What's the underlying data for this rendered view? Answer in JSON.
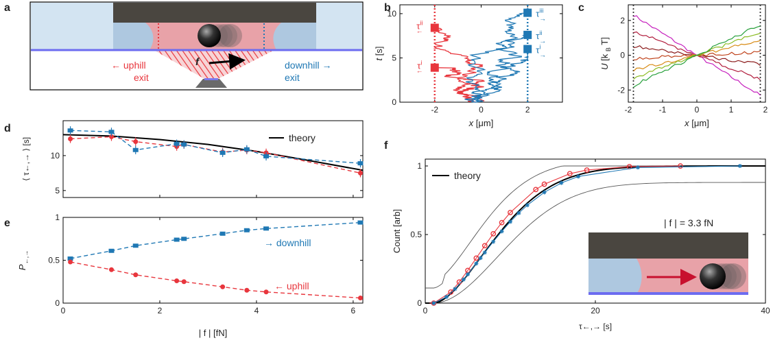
{
  "panels": {
    "a": "a",
    "b": "b",
    "c": "c",
    "d": "d",
    "e": "e",
    "f": "f"
  },
  "colors": {
    "red": "#e8363d",
    "blue": "#1f78b4",
    "wall": "#4a4640",
    "pink": "#e8a2a8",
    "lightblue": "#aec8e0"
  },
  "panel_a": {
    "force_label": "f",
    "uphill_line1": "← uphill",
    "uphill_line2": "exit",
    "downhill_line1": "downhill →",
    "downhill_line2": "exit"
  },
  "chart_data": [
    {
      "id": "b",
      "type": "line",
      "xlabel_var": "x",
      "xlabel_unit": "[μm]",
      "ylabel_var": "t",
      "ylabel_unit": "[s]",
      "xlim": [
        -3.5,
        3.5
      ],
      "ylim": [
        0,
        11
      ],
      "xticks": [
        "-2",
        "0",
        "2"
      ],
      "yticks": [
        "0",
        "5",
        "10"
      ],
      "exit_lines_x": [
        -2,
        2
      ],
      "annotations": [
        {
          "text": "τ",
          "sup": "ii",
          "arrow": "←",
          "x": -2,
          "y": 8.4,
          "color": "red"
        },
        {
          "text": "τ",
          "sup": "i",
          "arrow": "←",
          "x": -2,
          "y": 3.9,
          "color": "red"
        },
        {
          "text": "τ",
          "sup": "iii",
          "arrow": "→",
          "x": 2,
          "y": 10.1,
          "color": "blue"
        },
        {
          "text": "τ",
          "sup": "ii",
          "arrow": "→",
          "x": 2,
          "y": 7.6,
          "color": "blue"
        },
        {
          "text": "τ",
          "sup": "i",
          "arrow": "→",
          "x": 2,
          "y": 6.0,
          "color": "blue"
        }
      ]
    },
    {
      "id": "c",
      "type": "line",
      "xlabel_var": "x",
      "xlabel_unit": "[μm]",
      "ylabel_var": "U",
      "ylabel_unit": "[k",
      "ylabel_sub": "B",
      "ylabel_end": "T]",
      "xlim": [
        -2,
        2
      ],
      "ylim": [
        -2.7,
        2.9
      ],
      "xticks": [
        "-2",
        "-1",
        "0",
        "1",
        "2"
      ],
      "yticks": [
        "-2",
        "0",
        "2"
      ],
      "series_slopes": [
        {
          "slope": -1.25,
          "color": "#c51fbd"
        },
        {
          "slope": -0.75,
          "color": "#b01a3a"
        },
        {
          "slope": -0.28,
          "color": "#8b1a1a"
        },
        {
          "slope": 0.1,
          "color": "#c0431c"
        },
        {
          "slope": 0.45,
          "color": "#d88b15"
        },
        {
          "slope": 0.7,
          "color": "#8bbb22"
        },
        {
          "slope": 0.95,
          "color": "#28a03c"
        }
      ]
    },
    {
      "id": "d",
      "type": "line",
      "ylabel": "⟨ τ←,→ ⟩ [s]",
      "xlim": [
        0,
        6.2
      ],
      "ylim": [
        4,
        15
      ],
      "yticks": [
        "5",
        "10"
      ],
      "legend": "theory",
      "x": [
        0.15,
        1.0,
        1.5,
        2.35,
        2.5,
        3.3,
        3.8,
        4.2,
        6.15
      ],
      "series": [
        {
          "name": "uphill",
          "color": "red",
          "values": [
            12.4,
            12.7,
            12.0,
            11.3,
            11.6,
            10.5,
            10.8,
            10.4,
            7.5
          ]
        },
        {
          "name": "downhill",
          "color": "blue",
          "values": [
            13.6,
            13.4,
            10.8,
            11.7,
            11.6,
            10.4,
            10.9,
            9.9,
            8.9
          ]
        }
      ],
      "theory": {
        "x": [
          0,
          1,
          2,
          3,
          4,
          5,
          6.2
        ],
        "y": [
          13.0,
          12.8,
          12.3,
          11.6,
          10.6,
          9.4,
          7.9
        ]
      }
    },
    {
      "id": "e",
      "type": "line",
      "ylabel_var": "P",
      "ylabel_sub": "←,→",
      "xlabel": "| f | [fN]",
      "xlim": [
        0,
        6.2
      ],
      "ylim": [
        0,
        1
      ],
      "xticks": [
        "0",
        "2",
        "4",
        "6"
      ],
      "yticks": [
        "0",
        "0.5",
        "1"
      ],
      "x": [
        0.15,
        1.0,
        1.5,
        2.35,
        2.5,
        3.3,
        3.8,
        4.2,
        6.15
      ],
      "series": [
        {
          "name": "→ downhill",
          "color": "blue",
          "values": [
            0.52,
            0.61,
            0.67,
            0.74,
            0.75,
            0.81,
            0.85,
            0.87,
            0.94
          ]
        },
        {
          "name": "← uphill",
          "color": "red",
          "values": [
            0.48,
            0.39,
            0.33,
            0.26,
            0.25,
            0.19,
            0.15,
            0.13,
            0.06
          ]
        }
      ]
    },
    {
      "id": "f",
      "type": "line",
      "xlabel": "τ←,→ [s]",
      "ylabel": "Count [arb]",
      "xlim": [
        0,
        40
      ],
      "ylim": [
        0,
        1.05
      ],
      "xticks": [
        "0",
        "20",
        "40"
      ],
      "yticks": [
        "0",
        "0.5",
        "1"
      ],
      "legend": "theory",
      "inset_label": "| f | = 3.3 fN",
      "red_x": [
        1,
        3,
        4,
        5,
        6,
        7,
        8,
        9,
        10,
        13,
        14,
        17,
        19,
        24,
        30
      ],
      "blue_x": [
        1,
        2.5,
        3.5,
        4.5,
        5,
        6,
        6.5,
        7,
        8,
        9,
        10,
        11,
        12,
        14,
        16,
        18,
        25,
        37
      ]
    }
  ]
}
